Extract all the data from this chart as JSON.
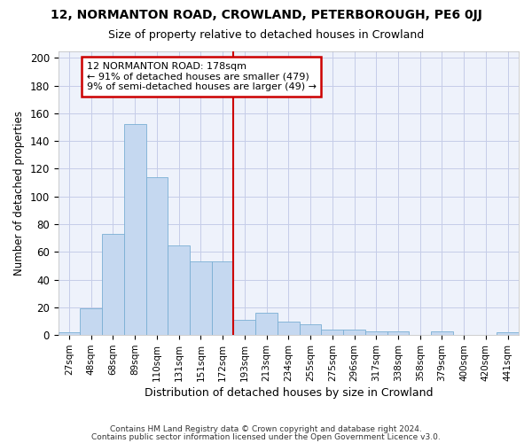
{
  "title1": "12, NORMANTON ROAD, CROWLAND, PETERBOROUGH, PE6 0JJ",
  "title2": "Size of property relative to detached houses in Crowland",
  "xlabel": "Distribution of detached houses by size in Crowland",
  "ylabel": "Number of detached properties",
  "bar_color": "#c5d8f0",
  "bar_edge_color": "#7aafd4",
  "vline_color": "#cc0000",
  "annotation_text": "12 NORMANTON ROAD: 178sqm\n← 91% of detached houses are smaller (479)\n9% of semi-detached houses are larger (49) →",
  "annotation_box_color": "#cc0000",
  "categories": [
    "27sqm",
    "48sqm",
    "68sqm",
    "89sqm",
    "110sqm",
    "131sqm",
    "151sqm",
    "172sqm",
    "193sqm",
    "213sqm",
    "234sqm",
    "255sqm",
    "275sqm",
    "296sqm",
    "317sqm",
    "338sqm",
    "358sqm",
    "379sqm",
    "400sqm",
    "420sqm",
    "441sqm"
  ],
  "values": [
    2,
    19,
    73,
    152,
    114,
    65,
    53,
    53,
    11,
    16,
    10,
    8,
    4,
    4,
    3,
    3,
    0,
    3,
    0,
    0,
    2
  ],
  "vline_idx": 7,
  "ylim": [
    0,
    205
  ],
  "yticks": [
    0,
    20,
    40,
    60,
    80,
    100,
    120,
    140,
    160,
    180,
    200
  ],
  "footer_line1": "Contains HM Land Registry data © Crown copyright and database right 2024.",
  "footer_line2": "Contains public sector information licensed under the Open Government Licence v3.0.",
  "bg_color": "#eef2fb",
  "grid_color": "#c5cce8",
  "title1_fontsize": 10,
  "title2_fontsize": 9
}
